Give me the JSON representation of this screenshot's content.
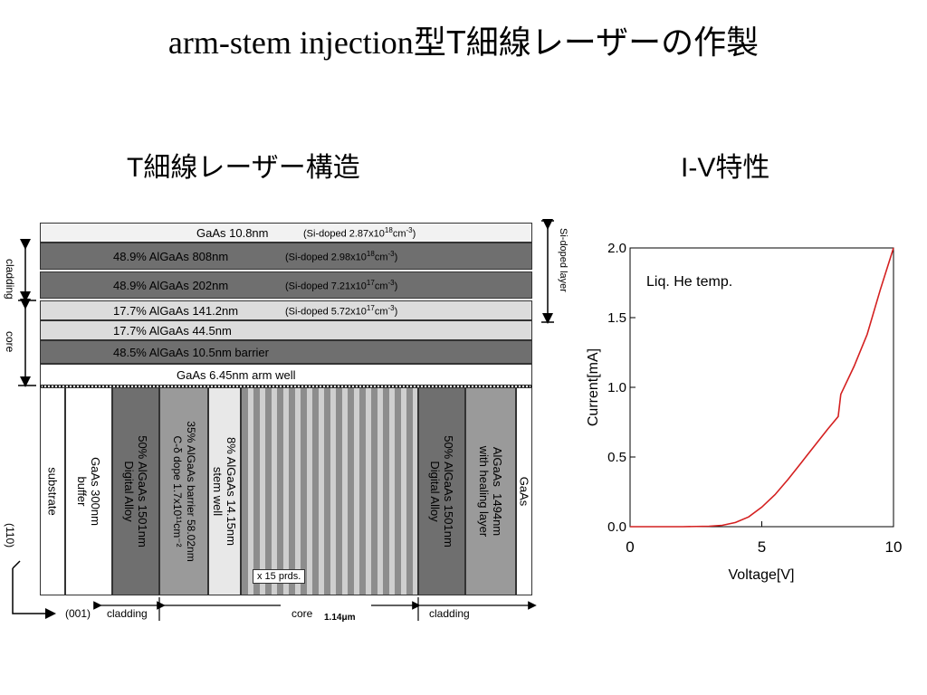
{
  "title": {
    "latin": "arm-stem injection",
    "jp": "型T細線レーザーの作製"
  },
  "left_heading": "T細線レーザー構造",
  "right_heading": "I-V特性",
  "layers": [
    {
      "material": "GaAs  10.8nm",
      "note": "(Si-doped 2.87x10",
      "exp": "18",
      "unit": "cm",
      "unitexp": "-3",
      "close": ")",
      "shade": "#f2f2f2"
    },
    {
      "material": "48.9%  AlGaAs  808nm",
      "note": "(Si-doped 2.98x10",
      "exp": "18",
      "unit": "cm",
      "unitexp": "-3",
      "close": ")",
      "shade": "#6f6f6f"
    },
    {
      "material": "48.9%  AlGaAs  202nm",
      "note": "(Si-doped 7.21x10",
      "exp": "17",
      "unit": "cm",
      "unitexp": "-3",
      "close": ")",
      "shade": "#6f6f6f"
    },
    {
      "material": "17.7%  AlGaAs  141.2nm",
      "note": "(Si-doped 5.72x10",
      "exp": "17",
      "unit": "cm",
      "unitexp": "-3",
      "close": ")",
      "shade": "#dcdcdc"
    },
    {
      "material": "17.7%  AlGaAs  44.5nm",
      "note": "",
      "exp": "",
      "unit": "",
      "unitexp": "",
      "close": "",
      "shade": "#dcdcdc"
    },
    {
      "material": "48.5%  AlGaAs  10.5nm  barrier",
      "note": "",
      "exp": "",
      "unit": "",
      "unitexp": "",
      "close": "",
      "shade": "#6f6f6f"
    },
    {
      "material": "GaAs  6.45nm  arm well",
      "note": "",
      "exp": "",
      "unit": "",
      "unitexp": "",
      "close": "",
      "shade": "#ffffff"
    }
  ],
  "columns": [
    {
      "label": "substrate"
    },
    {
      "label": "GaAs 300nm\nbuffer"
    },
    {
      "label": "50% AlGaAs 1501nm\nDigital Alloy"
    },
    {
      "label": "35% AlGaAs barrier 58.02nm\nC-δ dope 1.7x10¹¹cm⁻²"
    },
    {
      "label": "8% AlGaAs 14.15nm\nstem well"
    },
    {
      "label": "50% AlGaAs 1501nm\nDigital Alloy"
    },
    {
      "label": "AlGaAs  1494nm\nwith healing layer"
    },
    {
      "label": "GaAs"
    }
  ],
  "periods_label": "x 15 prds.",
  "side_labels": {
    "cladding": "cladding",
    "core": "core",
    "si_doped": "Si-doped layer"
  },
  "bottom_labels": {
    "dir_110": "(110)",
    "dir_001": "(001)",
    "cladding_left": "cladding",
    "core": "core",
    "core_width": "1.14μm",
    "cladding_right": "cladding"
  },
  "chart_data": {
    "type": "line",
    "title": "",
    "annotation": "Liq. He temp.",
    "xlabel": "Voltage[V]",
    "ylabel": "Current[mA]",
    "xlim": [
      0,
      10
    ],
    "ylim": [
      0,
      2.0
    ],
    "xticks": [
      "0",
      "5",
      "10"
    ],
    "yticks": [
      "0.0",
      "0.5",
      "1.0",
      "1.5",
      "2.0"
    ],
    "grid": false,
    "series_color": "#d42020",
    "x": [
      0,
      1,
      2,
      3,
      3.5,
      4,
      4.5,
      5,
      5.5,
      6,
      6.5,
      7,
      7.5,
      7.9,
      8.0,
      8.5,
      9,
      9.5,
      10
    ],
    "y": [
      0,
      0,
      0,
      0.003,
      0.01,
      0.03,
      0.07,
      0.14,
      0.23,
      0.34,
      0.46,
      0.58,
      0.7,
      0.79,
      0.95,
      1.15,
      1.38,
      1.7,
      2.0
    ]
  }
}
